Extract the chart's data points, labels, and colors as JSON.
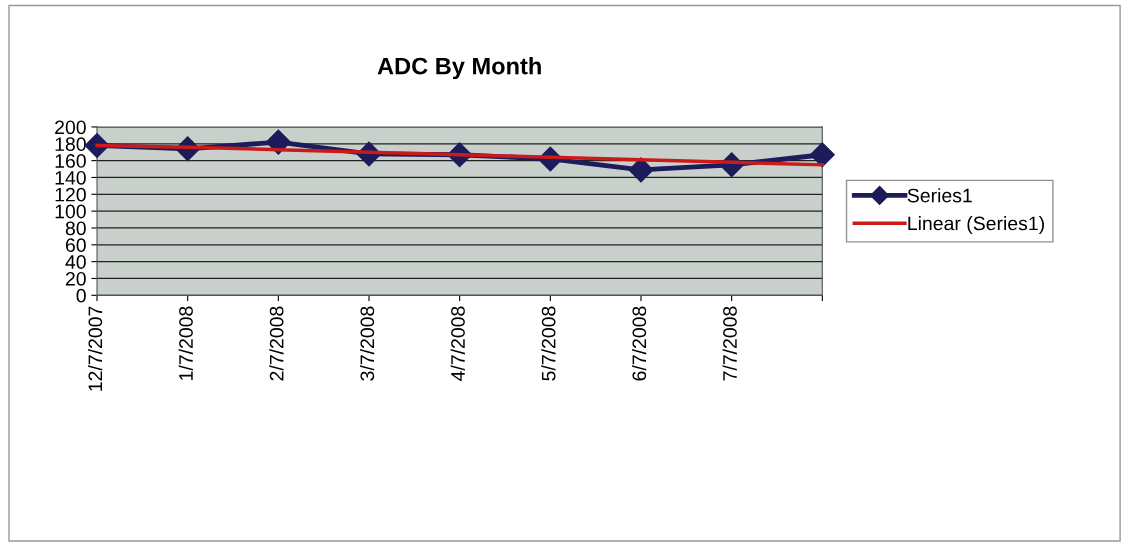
{
  "chart_data": {
    "type": "line",
    "title": "ADC By Month",
    "categories": [
      "12/7/2007",
      "1/7/2008",
      "2/7/2008",
      "3/7/2008",
      "4/7/2008",
      "5/7/2008",
      "6/7/2008",
      "7/7/2008",
      null
    ],
    "series": [
      {
        "name": "Series1",
        "color": "#1c1c5a",
        "marker": "diamond",
        "values": [
          178,
          174,
          182,
          168,
          167,
          162,
          149,
          155,
          167
        ]
      },
      {
        "name": "Linear (Series1)",
        "color": "#cc1a1a",
        "marker": "none",
        "values": [
          178,
          176,
          173,
          170,
          167,
          164,
          161,
          158,
          155
        ]
      }
    ],
    "ylim": [
      0,
      200
    ],
    "yticks": [
      0,
      20,
      40,
      60,
      80,
      100,
      120,
      140,
      160,
      180,
      200
    ],
    "grid": "y",
    "legend": "right"
  }
}
